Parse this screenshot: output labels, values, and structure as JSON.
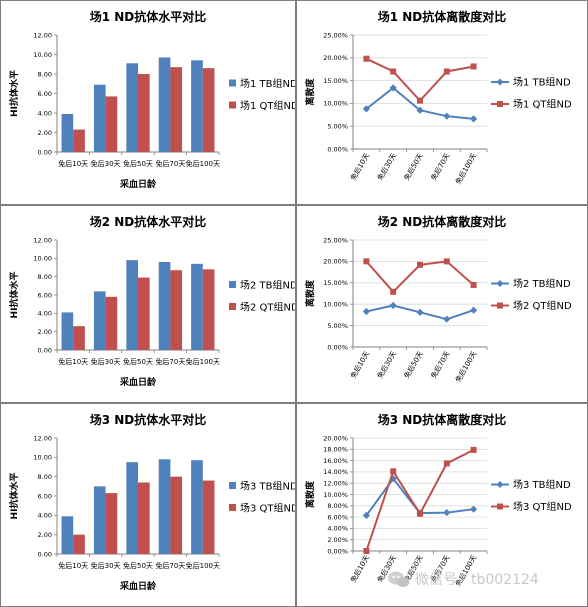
{
  "colors": {
    "tb": "#4F81BD",
    "qt": "#C0504D",
    "plot_bg": "#ffffff",
    "grid": "#d9d9d9",
    "axis": "#808080"
  },
  "watermark": {
    "icon": "wechat-icon",
    "text": "微信号：tb002124"
  },
  "chart_data": [
    {
      "type": "bar",
      "title": "场1 ND抗体水平对比",
      "xlabel": "采血日龄",
      "ylabel": "HI抗体水平",
      "categories": [
        "免后10天",
        "免后30天",
        "免后50天",
        "免后70天",
        "免后100天"
      ],
      "ylim": [
        0,
        12
      ],
      "yticks": [
        "0.00",
        "2.00",
        "4.00",
        "6.00",
        "8.00",
        "10.00",
        "12.00"
      ],
      "grid": false,
      "legend_position": "right",
      "series": [
        {
          "name": "场1 TB组ND",
          "color": "#4F81BD",
          "values": [
            3.9,
            6.9,
            9.1,
            9.7,
            9.4
          ]
        },
        {
          "name": "场1 QT组ND",
          "color": "#C0504D",
          "values": [
            2.3,
            5.7,
            8.0,
            8.7,
            8.6
          ]
        }
      ]
    },
    {
      "type": "line",
      "title": "场1 ND抗体离散度对比",
      "xlabel": "",
      "ylabel": "离散度",
      "categories": [
        "免后10天",
        "免后30天",
        "免后50天",
        "免后70天",
        "免后100天"
      ],
      "ylim": [
        0,
        25
      ],
      "yticks": [
        "0.00%",
        "5.00%",
        "10.00%",
        "15.00%",
        "20.00%",
        "25.00%"
      ],
      "grid": true,
      "legend_position": "right",
      "series": [
        {
          "name": "场1 TB组ND",
          "color": "#4F81BD",
          "marker": "diamond",
          "values": [
            8.8,
            13.4,
            8.5,
            7.2,
            6.6
          ]
        },
        {
          "name": "场1 QT组ND",
          "color": "#C0504D",
          "marker": "square",
          "values": [
            19.8,
            17.0,
            10.6,
            17.0,
            18.1
          ]
        }
      ]
    },
    {
      "type": "bar",
      "title": "场2 ND抗体水平对比",
      "xlabel": "采血日龄",
      "ylabel": "HI抗体水平",
      "categories": [
        "免后10天",
        "免后30天",
        "免后50天",
        "免后70天",
        "免后100天"
      ],
      "ylim": [
        0,
        12
      ],
      "yticks": [
        "0.00",
        "2.00",
        "4.00",
        "6.00",
        "8.00",
        "10.00",
        "12.00"
      ],
      "grid": false,
      "legend_position": "right",
      "series": [
        {
          "name": "场2 TB组ND",
          "color": "#4F81BD",
          "values": [
            4.1,
            6.4,
            9.8,
            9.6,
            9.4
          ]
        },
        {
          "name": "场2 QT组ND",
          "color": "#C0504D",
          "values": [
            2.6,
            5.8,
            7.9,
            8.7,
            8.8
          ]
        }
      ]
    },
    {
      "type": "line",
      "title": "场2 ND抗体离散度对比",
      "xlabel": "",
      "ylabel": "离散度",
      "categories": [
        "免后10天",
        "免后30天",
        "免后50天",
        "免后70天",
        "免后100天"
      ],
      "ylim": [
        0,
        25
      ],
      "yticks": [
        "0.00%",
        "5.00%",
        "10.00%",
        "15.00%",
        "20.00%",
        "25.00%"
      ],
      "grid": true,
      "legend_position": "right",
      "series": [
        {
          "name": "场2 TB组ND",
          "color": "#4F81BD",
          "marker": "diamond",
          "values": [
            8.3,
            9.7,
            8.1,
            6.5,
            8.6
          ]
        },
        {
          "name": "场2 QT组ND",
          "color": "#C0504D",
          "marker": "square",
          "values": [
            20.0,
            12.9,
            19.2,
            20.0,
            14.5
          ]
        }
      ]
    },
    {
      "type": "bar",
      "title": "场3 ND抗体水平对比",
      "xlabel": "采血日龄",
      "ylabel": "HI抗体水平",
      "categories": [
        "免后10天",
        "免后30天",
        "免后50天",
        "免后70天",
        "免后100天"
      ],
      "ylim": [
        0,
        12
      ],
      "yticks": [
        "0.00",
        "2.00",
        "4.00",
        "6.00",
        "8.00",
        "10.00",
        "12.00"
      ],
      "grid": false,
      "legend_position": "right",
      "series": [
        {
          "name": "场3 TB组ND",
          "color": "#4F81BD",
          "values": [
            3.9,
            7.0,
            9.5,
            9.8,
            9.7
          ]
        },
        {
          "name": "场3 QT组ND",
          "color": "#C0504D",
          "values": [
            2.0,
            6.3,
            7.4,
            8.0,
            7.6
          ]
        }
      ]
    },
    {
      "type": "line",
      "title": "场3 ND抗体离散度对比",
      "xlabel": "",
      "ylabel": "离散度",
      "categories": [
        "免后10天",
        "免后30天",
        "免后50天",
        "免后70天",
        "免后100天"
      ],
      "ylim": [
        0,
        20
      ],
      "yticks": [
        "0.00%",
        "2.00%",
        "4.00%",
        "6.00%",
        "8.00%",
        "10.00%",
        "12.00%",
        "14.00%",
        "16.00%",
        "18.00%",
        "20.00%"
      ],
      "grid": true,
      "legend_position": "right",
      "series": [
        {
          "name": "场3 TB组ND",
          "color": "#4F81BD",
          "marker": "diamond",
          "values": [
            6.3,
            12.8,
            6.7,
            6.8,
            7.4
          ]
        },
        {
          "name": "场3 QT组ND",
          "color": "#C0504D",
          "marker": "square",
          "values": [
            0.0,
            14.1,
            6.6,
            15.5,
            17.9
          ]
        }
      ]
    }
  ]
}
